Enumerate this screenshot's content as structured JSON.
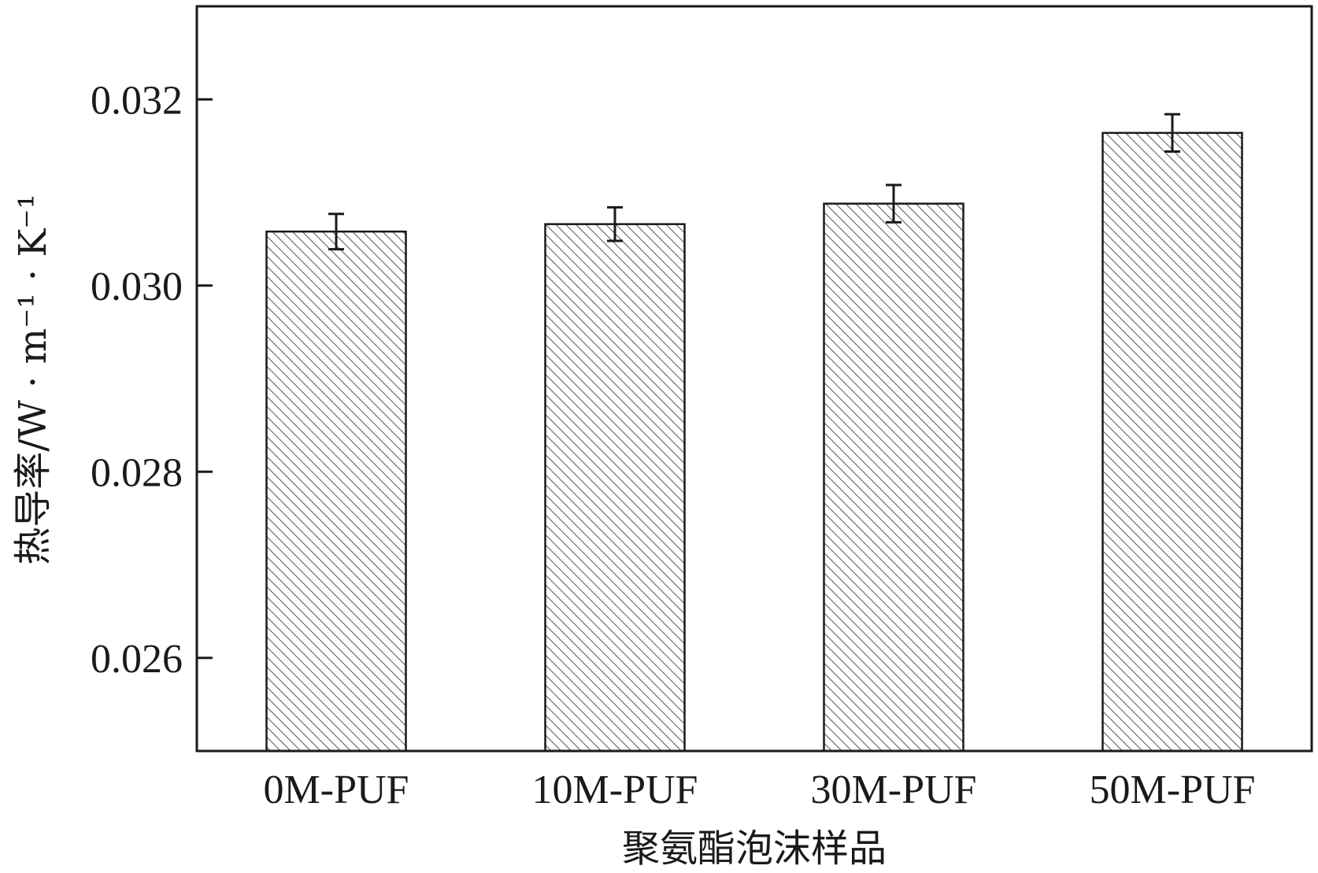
{
  "chart_data": {
    "type": "bar",
    "categories": [
      "0M-PUF",
      "10M-PUF",
      "30M-PUF",
      "50M-PUF"
    ],
    "values": [
      0.03058,
      0.03066,
      0.03088,
      0.03164
    ],
    "errors": [
      0.00019,
      0.00018,
      0.0002,
      0.0002
    ],
    "ylim": [
      0.025,
      0.033
    ],
    "yticks": [
      0.026,
      0.028,
      0.03,
      0.032
    ],
    "ytick_labels": [
      "0.026",
      "0.028",
      "0.030",
      "0.032"
    ],
    "xlabel": "聚氨酯泡沫样品",
    "ylabel": "热导率/W · m⁻¹ · K⁻¹",
    "hatch": "diagonal",
    "bar_fill": "#ffffff",
    "bar_hatch_color": "#555555",
    "axis_color": "#1a1a1a"
  }
}
